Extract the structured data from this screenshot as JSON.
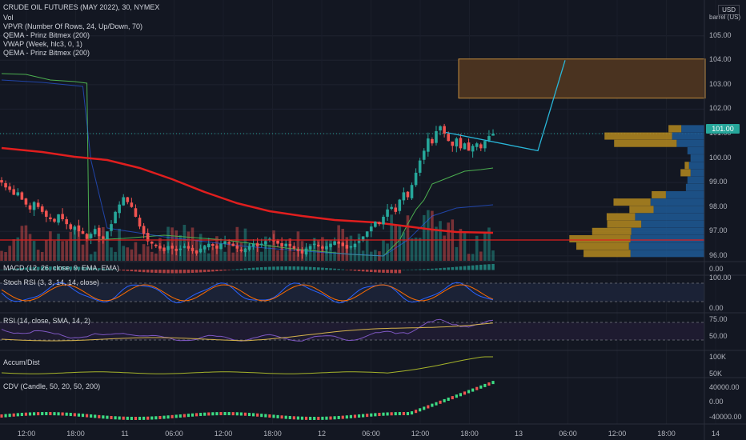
{
  "header": {
    "symbol_title": "CRUDE OIL FUTURES (MAY 2022), 30, NYMEX",
    "indicators": [
      "Vol",
      "VPVR (Number Of Rows, 24, Up/Down, 70)",
      "QEMA - Prinz Bitmex (200)",
      "VWAP (Week, hlc3, 0, 1)",
      "QEMA - Prinz Bitmex (200)"
    ]
  },
  "axis_badges": {
    "currency": "USD",
    "unit": "barrel (US)"
  },
  "current_price_label": "101.00",
  "panes": {
    "macd_label": "MACD (12, 26, close, 9, EMA, EMA)",
    "stoch_label": "Stoch RSI (3, 3, 14, 14, close)",
    "rsi_label": "RSI (14, close, SMA, 14, 2)",
    "accum_label": "Accum/Dist",
    "cdv_label": "CDV (Candle, 50, 20, 50, 200)"
  },
  "colors": {
    "background": "#131722",
    "up": "#26a69a",
    "down": "#ef5350",
    "ema_red": "#e01e1e",
    "vwap_green": "#4caf50",
    "projection": "#29b6d8",
    "zone_fill": "#4a3320",
    "zone_border": "#c28a3c",
    "vp_up": "#1f5a96",
    "vp_down": "#b58a1e"
  },
  "chart_data": [
    {
      "type": "candlestick",
      "title": "CRUDE OIL FUTURES (MAY 2022), 30, NYMEX",
      "ylim": [
        95.8,
        106.2
      ],
      "y_ticks": [
        "105.00",
        "104.00",
        "103.00",
        "102.00",
        "101.00",
        "100.00",
        "99.00",
        "98.00",
        "97.00",
        "96.00"
      ],
      "x_ticks": [
        "12:00",
        "18:00",
        "11",
        "06:00",
        "12:00",
        "18:00",
        "12",
        "06:00",
        "12:00",
        "18:00",
        "13",
        "06:00",
        "12:00",
        "18:00",
        "14"
      ],
      "current_price": 101.0,
      "support_line": 96.65,
      "target_zone": [
        102.45,
        104.05
      ],
      "projection_path": [
        [
          101.05,
          100.3
        ],
        [
          102.45,
          104.0
        ]
      ],
      "close_series": [
        99.0,
        98.8,
        98.7,
        98.5,
        98.6,
        98.3,
        98.1,
        97.9,
        98.2,
        98.0,
        97.8,
        97.6,
        97.5,
        97.4,
        97.7,
        97.5,
        97.3,
        97.1,
        97.2,
        97.0,
        96.9,
        96.7,
        96.9,
        97.1,
        96.8,
        96.7,
        97.0,
        97.3,
        97.8,
        98.1,
        98.4,
        98.2,
        98.0,
        97.6,
        97.2,
        96.9,
        96.6,
        96.5,
        96.4,
        96.3,
        96.2,
        96.4,
        96.3,
        96.2,
        96.3,
        96.4,
        96.3,
        96.2,
        96.1,
        96.3,
        96.4,
        96.5,
        96.4,
        96.3,
        96.5,
        96.6,
        96.5,
        96.4,
        96.3,
        96.2,
        96.3,
        96.4,
        96.5,
        96.4,
        96.5,
        96.6,
        96.7,
        96.6,
        96.5,
        96.4,
        96.5,
        96.4,
        96.3,
        96.2,
        96.1,
        96.3,
        96.4,
        96.5,
        96.4,
        96.3,
        96.4,
        96.5,
        96.6,
        96.5,
        96.4,
        96.3,
        96.4,
        96.5,
        96.6,
        96.8,
        97.0,
        97.2,
        97.4,
        97.3,
        97.6,
        97.9,
        98.0,
        97.8,
        98.3,
        98.6,
        98.4,
        98.9,
        99.4,
        99.9,
        100.3,
        100.8,
        100.6,
        101.1,
        101.3,
        101.0,
        100.7,
        100.5,
        100.8,
        100.4,
        100.6,
        100.3,
        100.5,
        100.6,
        100.4,
        100.7,
        100.9,
        101.0
      ],
      "volume_profile_rows": [
        {
          "price": 101.2,
          "up": 30,
          "down": 18
        },
        {
          "price": 100.9,
          "up": 42,
          "down": 95
        },
        {
          "price": 100.6,
          "up": 36,
          "down": 88
        },
        {
          "price": 100.3,
          "up": 22,
          "down": 0
        },
        {
          "price": 100.0,
          "up": 18,
          "down": 0
        },
        {
          "price": 99.7,
          "up": 20,
          "down": 6
        },
        {
          "price": 99.4,
          "up": 18,
          "down": 14
        },
        {
          "price": 99.1,
          "up": 22,
          "down": 0
        },
        {
          "price": 98.8,
          "up": 24,
          "down": 0
        },
        {
          "price": 98.5,
          "up": 50,
          "down": 20
        },
        {
          "price": 98.2,
          "up": 70,
          "down": 52
        },
        {
          "price": 97.9,
          "up": 66,
          "down": 34
        },
        {
          "price": 97.6,
          "up": 90,
          "down": 40
        },
        {
          "price": 97.3,
          "up": 82,
          "down": 48
        },
        {
          "price": 97.0,
          "up": 95,
          "down": 55
        },
        {
          "price": 96.7,
          "up": 96,
          "down": 86
        },
        {
          "price": 96.4,
          "up": 98,
          "down": 74
        },
        {
          "price": 96.1,
          "up": 96,
          "down": 66
        }
      ]
    },
    {
      "type": "line",
      "title": "Stoch RSI (3, 3, 14, 14, close)",
      "ylim": [
        0,
        100
      ],
      "y_ticks": [
        "100.00",
        "0.00"
      ]
    },
    {
      "type": "line",
      "title": "RSI (14, close, SMA, 14, 2)",
      "ylim": [
        30,
        80
      ],
      "y_ticks": [
        "75.00",
        "50.00"
      ]
    },
    {
      "type": "line",
      "title": "Accum/Dist",
      "y_ticks": [
        "100K",
        "50K"
      ]
    },
    {
      "type": "bar",
      "title": "CDV (Candle, 50, 20, 50, 200)",
      "y_ticks": [
        "40000.00",
        "0.00",
        "-40000.00"
      ]
    }
  ],
  "macd_zero_label": "0.00"
}
